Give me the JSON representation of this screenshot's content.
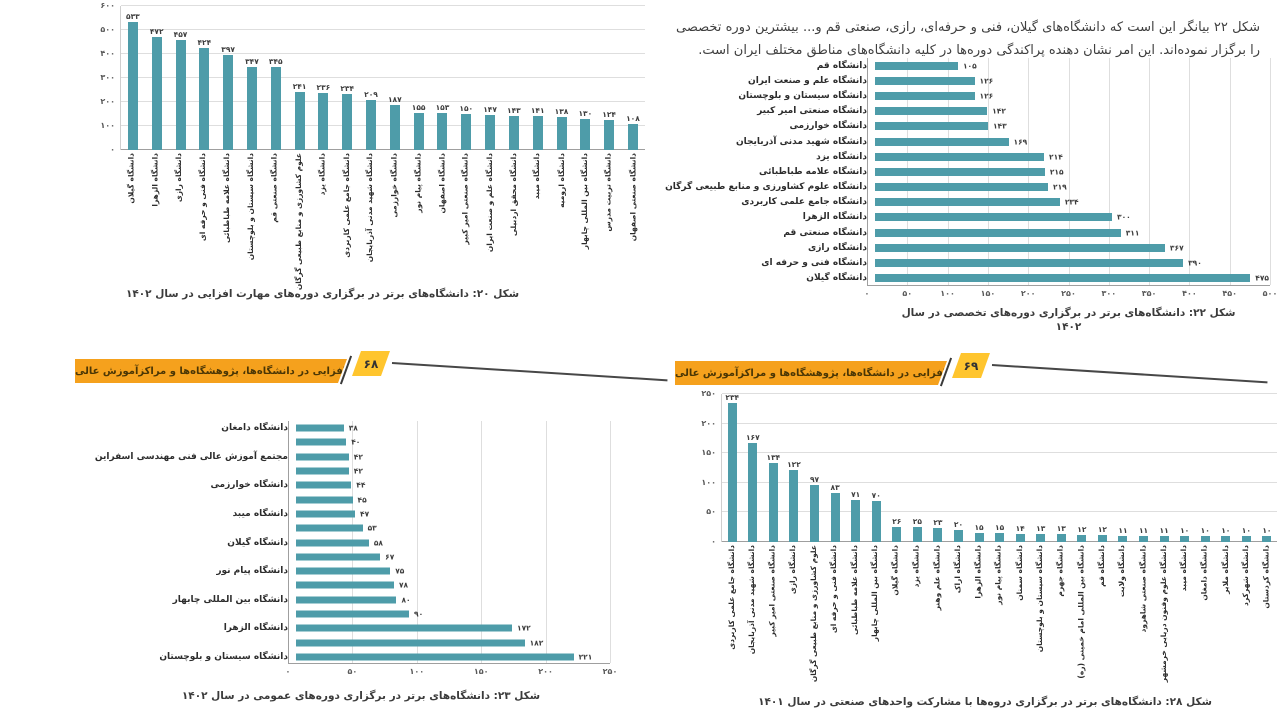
{
  "page": {
    "intro_paragraph": "شکل ۲۲ بیانگر این است که دانشگاه‌های گیلان، فنی و حرفه‌ای، رازی، صنعتی قم و... بیشترین دوره تخصصی را برگزار نموده‌اند. این امر نشان دهنده پراکندگی دوره‌ها در کلیه دانشگاه‌های مناطق مختلف ایران است.",
    "banners": {
      "left": {
        "title": "مهارت‌افزایی در دانشگاه‌ها، پژوهشگاه‌ها و مراکزآموزش عالی کشور",
        "page_number": "۶۸"
      },
      "right": {
        "title": "مهارت‌افزایی در دانشگاه‌ها، پژوهشگاه‌ها و مراکزآموزش عالی کشور",
        "page_number": "۶۹"
      }
    }
  },
  "colors": {
    "bar": "#4e9ca9",
    "grid": "#dedede",
    "axis": "#9f9f9f",
    "banner_bar": "#f5a11d",
    "banner_page": "#ffc52e"
  },
  "chart_data": [
    {
      "id": "figure-20",
      "type": "bar",
      "orientation": "vertical",
      "title": "شکل ۲۰: دانشگاه‌های برتر در برگزاری دوره‌های مهارت افزایی در سال ۱۴۰۲",
      "categories": [
        "دانشگاه گیلان",
        "دانشگاه الزهرا",
        "دانشگاه رازی",
        "دانشگاه فنی و حرفه ای",
        "دانشگاه علامه طباطبائی",
        "دانشگاه سیستان و بلوچستان",
        "دانشگاه صنعتی قم",
        "علوم کشاورزی و منابع طبیعی گرگان",
        "دانشگاه یزد",
        "دانشگاه جامع علمی کاربردی",
        "دانشگاه شهید مدنی آذربایجان",
        "دانشگاه خوارزمی",
        "دانشگاه پیام نور",
        "دانشگاه اصفهان",
        "دانشگاه صنعتی امیر کبیر",
        "دانشگاه علم و صنعت ایران",
        "دانشگاه محقق اردبیلی",
        "دانشگاه میبد",
        "دانشگاه ارومیه",
        "دانشگاه بین المللی چابهار",
        "دانشگاه تربیت مدرس",
        "دانشگاه صنعتی اصفهان"
      ],
      "values": [
        533,
        472,
        457,
        424,
        397,
        347,
        345,
        241,
        236,
        234,
        209,
        187,
        155,
        153,
        150,
        147,
        143,
        141,
        138,
        130,
        124,
        108
      ],
      "ylim": [
        0,
        600
      ],
      "tick_step": 100,
      "grid": "horizontal",
      "digit_style": "persian"
    },
    {
      "id": "figure-22",
      "type": "bar",
      "orientation": "horizontal",
      "title": "شکل ۲۲: دانشگاه‌های برتر در برگزاری دوره‌های  تخصصی در سال ۱۴۰۲",
      "categories": [
        "دانشگاه قم",
        "دانشگاه علم و صنعت ایران",
        "دانشگاه سیستان و بلوچستان",
        "دانشگاه صنعتی امیر کبیر",
        "دانشگاه خوارزمی",
        "دانشگاه شهید مدنی آذربایجان",
        "دانشگاه یزد",
        "دانشگاه علامه طباطبائی",
        "دانشگاه علوم کشاورزی و منابع طبیعی گرگان",
        "دانشگاه جامع علمی کاربردی",
        "دانشگاه الزهرا",
        "دانشگاه صنعتی قم",
        "دانشگاه رازی",
        "دانشگاه فنی و حرفه ای",
        "دانشگاه گیلان"
      ],
      "values": [
        105,
        126,
        126,
        142,
        143,
        169,
        214,
        215,
        219,
        234,
        300,
        311,
        367,
        390,
        475
      ],
      "xlim": [
        0,
        500
      ],
      "tick_step": 50,
      "grid": "vertical",
      "digit_style": "persian"
    },
    {
      "id": "figure-23",
      "type": "bar",
      "orientation": "horizontal",
      "title": "شکل ۲۳: دانشگاه‌های برتر در برگزاری دوره‌های عمومی در سال ۱۴۰۲",
      "categories": [
        "دانشگاه دامغان",
        "",
        "مجتمع آموزش عالی فنی مهندسی اسفراین",
        "",
        "دانشگاه خوارزمی",
        "",
        "دانشگاه میبد",
        "",
        "دانشگاه گیلان",
        "",
        "دانشگاه پیام نور",
        "",
        "دانشگاه بین المللی چابهار",
        "",
        "دانشگاه الزهرا",
        "",
        "دانشگاه سیستان و بلوچستان"
      ],
      "values": [
        38,
        40,
        42,
        42,
        44,
        45,
        47,
        53,
        58,
        67,
        75,
        78,
        80,
        90,
        172,
        182,
        221
      ],
      "xlim": [
        0,
        250
      ],
      "tick_step": 50,
      "grid": "vertical",
      "digit_style": "persian"
    },
    {
      "id": "figure-28",
      "type": "bar",
      "orientation": "vertical",
      "title": "شکل ۲۸: دانشگاه‌های برتر در برگزاری دروه‌ها با مشارکت واحدهای صنعتی در سال ۱۴۰۱",
      "categories": [
        "دانشگاه جامع علمی کاربردی",
        "دانشگاه شهید مدنی آذربایجان",
        "دانشگاه صنعتی امیر کبیر",
        "دانشگاه رازی",
        "علوم کشاورزی و منابع طبیعی گرگان",
        "دانشگاه فنی و حرفه ای",
        "دانشگاه علامه طباطبائی",
        "دانشگاه بین المللی چابهار",
        "دانشگاه گیلان",
        "دانشگاه یزد",
        "دانشگاه علم وهنر",
        "دانشگاه اراک",
        "دانشگاه الزهرا",
        "دانشگاه پیام نور",
        "دانشگاه سمنان",
        "دانشگاه سیستان و بلوچستان",
        "دانشگاه جهرم",
        "دانشگاه بین المللی امام خمینی (ره)",
        "دانشگاه قم",
        "دانشگاه ولایت",
        "دانشگاه صنعتی شاهرود",
        "دانشگاه علوم وفنون دریایی خرمشهر",
        "دانشگاه میبد",
        "دانشگاه دامغان",
        "دانشگاه ملایر",
        "دانشگاه شهرکرد",
        "دانشگاه کردستان"
      ],
      "values": [
        234,
        167,
        134,
        122,
        97,
        83,
        71,
        70,
        26,
        25,
        23,
        20,
        15,
        15,
        14,
        13,
        13,
        12,
        12,
        11,
        11,
        11,
        10,
        10,
        10,
        10,
        10
      ],
      "ylim": [
        0,
        250
      ],
      "tick_step": 50,
      "grid": "horizontal",
      "digit_style": "persian"
    }
  ]
}
